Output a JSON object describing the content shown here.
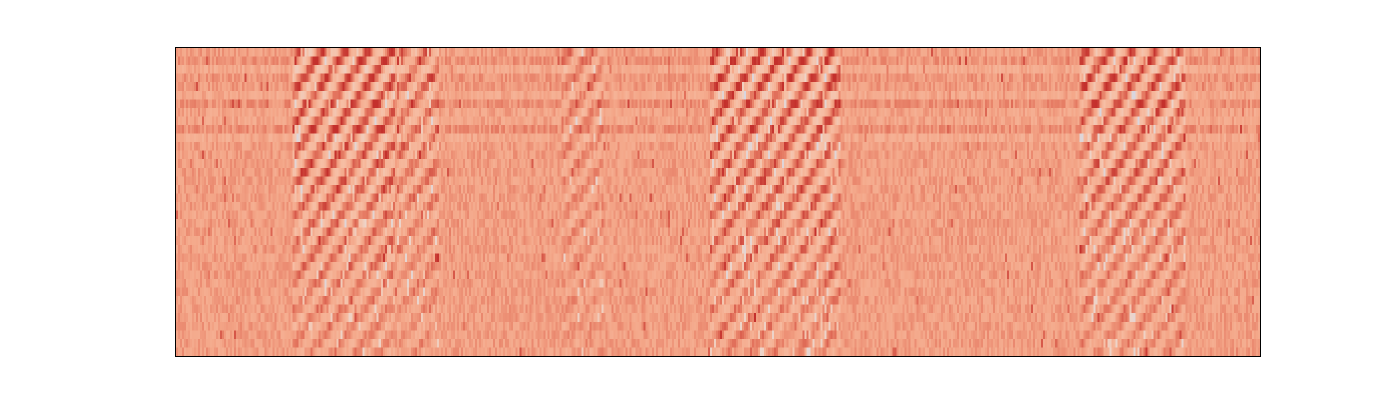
{
  "chart_data": {
    "type": "heatmap",
    "title": "",
    "xlabel": "",
    "ylabel": "",
    "axes_visible": false,
    "grid": false,
    "legend": "none",
    "colormap": "coolwarm",
    "colors": {
      "dominant": "#f4a98c",
      "background_low": "#f7b89c",
      "high": "#cc3a32",
      "low": "#dcdde6"
    },
    "time_frames": 540,
    "frequency_bins": 36,
    "value_range": [
      0,
      1
    ],
    "baseline_level": 0.74,
    "vocal_segments": [
      {
        "start_frame": 58,
        "end_frame": 108,
        "intensity": 1.0
      },
      {
        "start_frame": 110,
        "end_frame": 130,
        "intensity": 0.7
      },
      {
        "start_frame": 192,
        "end_frame": 212,
        "intensity": 0.5
      },
      {
        "start_frame": 266,
        "end_frame": 330,
        "intensity": 1.0
      },
      {
        "start_frame": 450,
        "end_frame": 502,
        "intensity": 0.9
      }
    ]
  }
}
